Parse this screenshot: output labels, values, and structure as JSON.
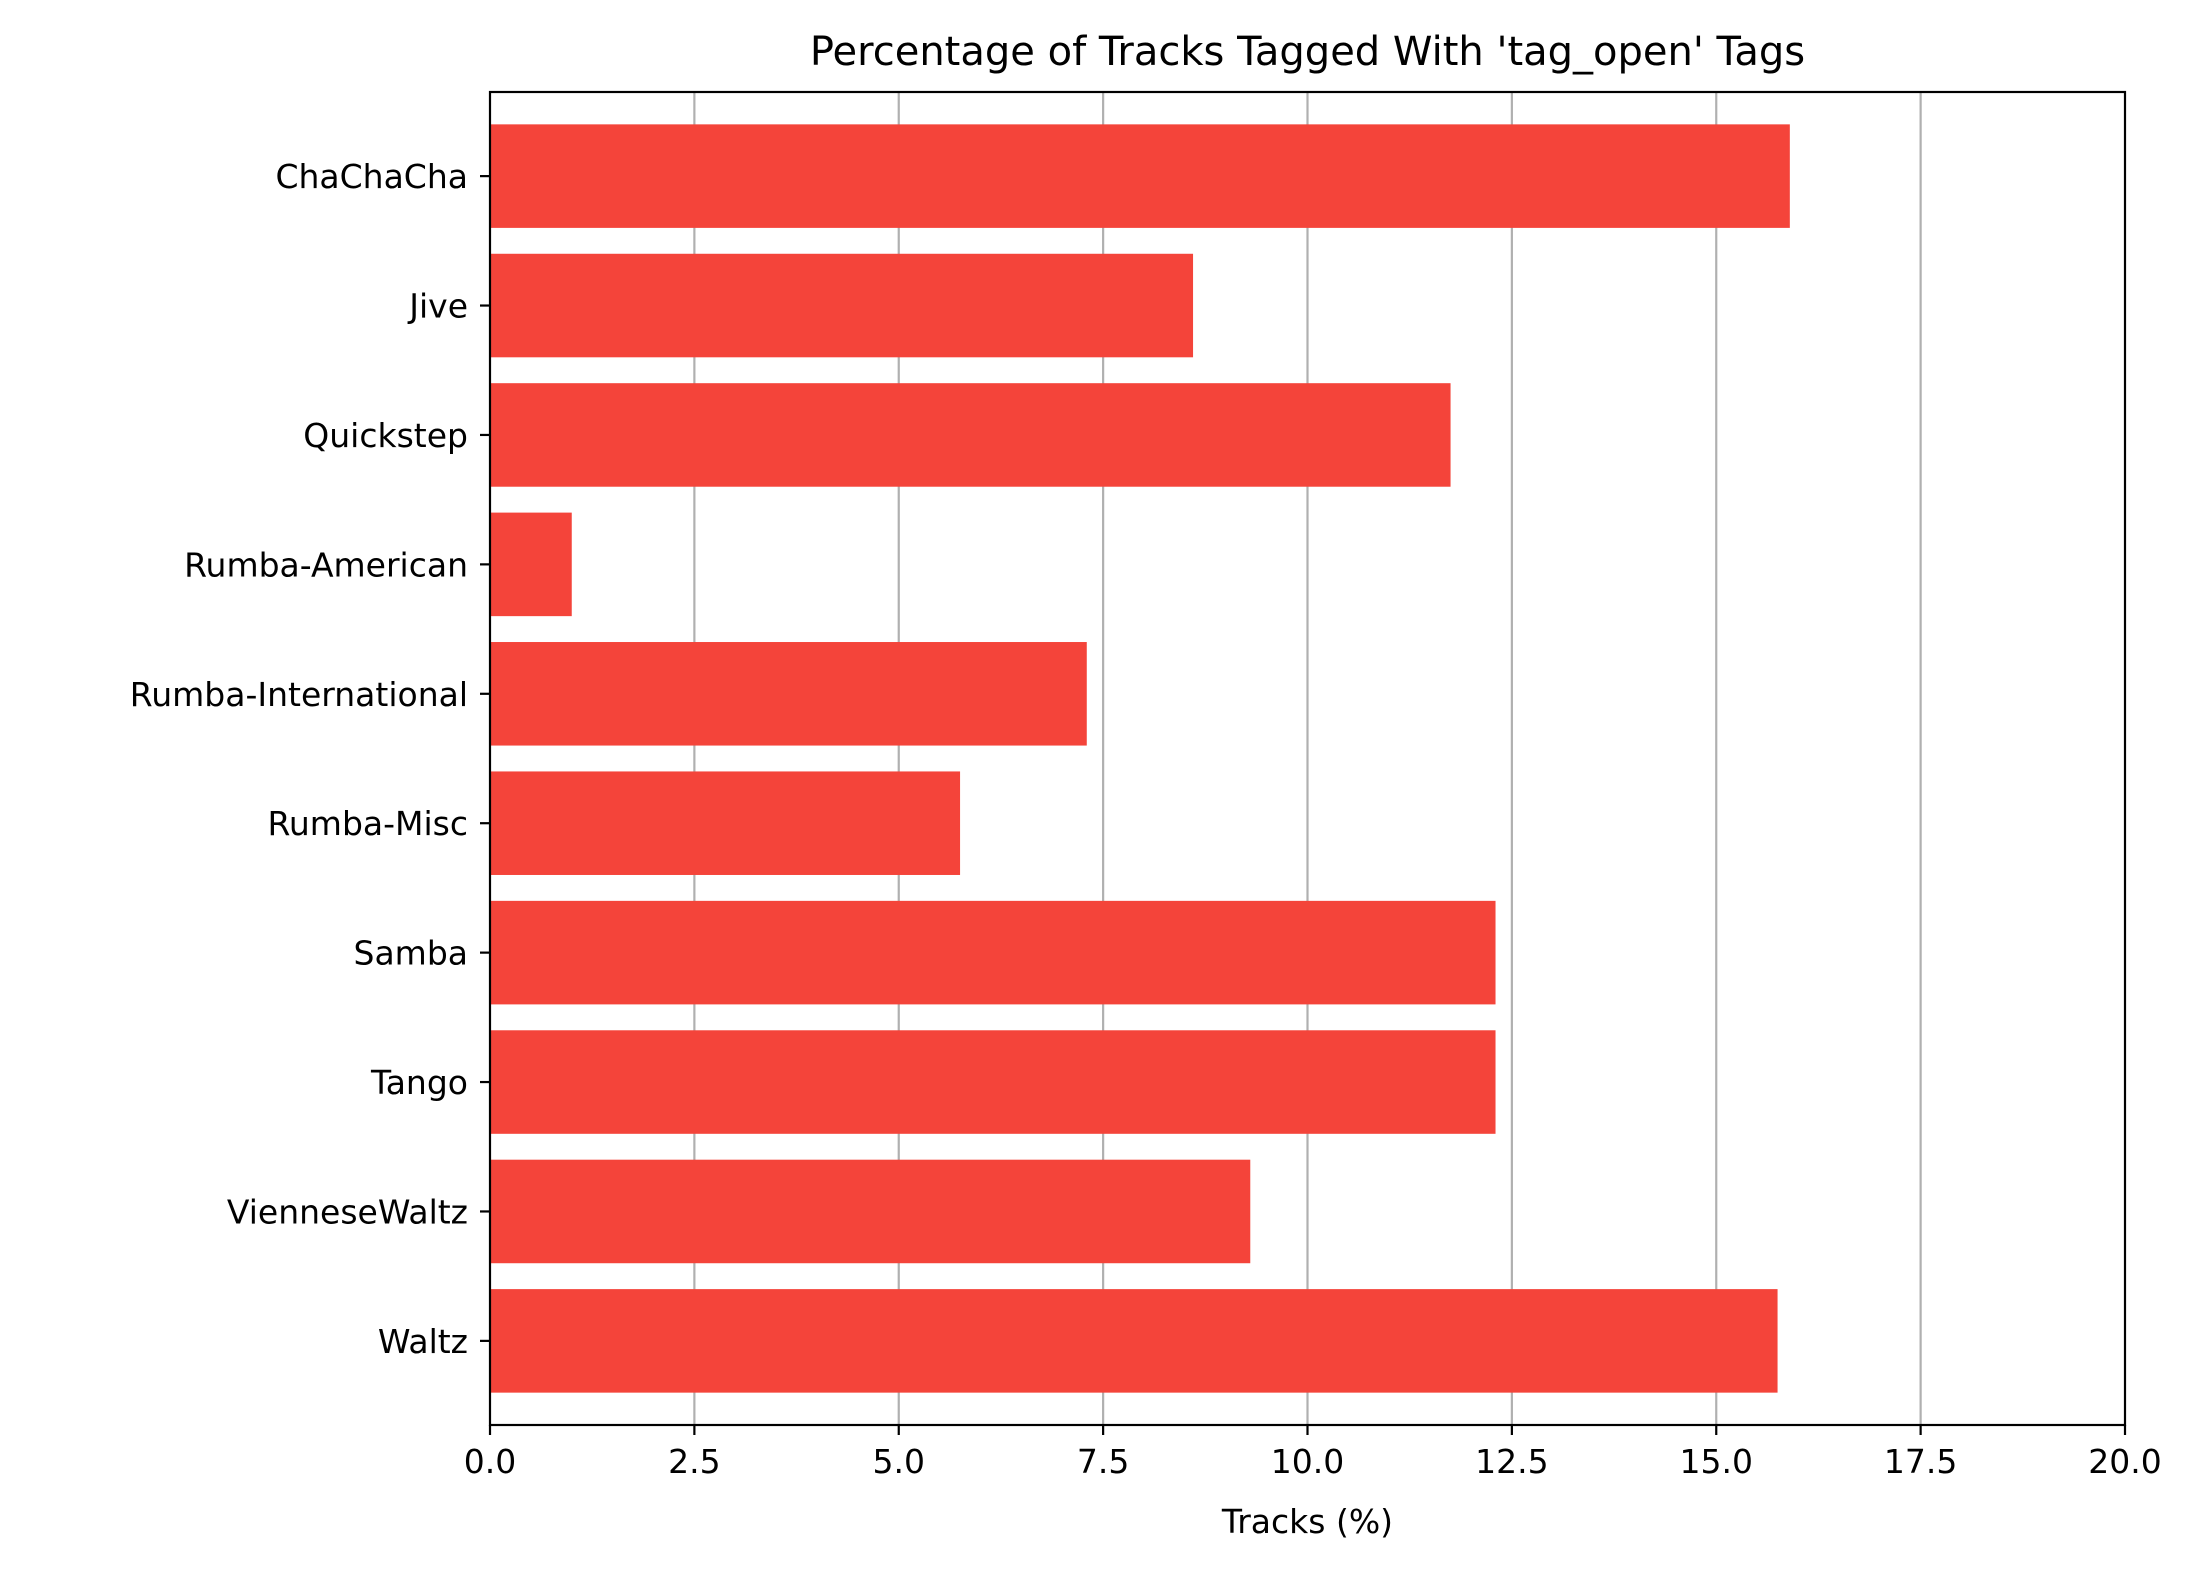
{
  "chart_data": {
    "type": "bar",
    "orientation": "horizontal",
    "title": "Percentage of Tracks Tagged With 'tag_open' Tags",
    "xlabel": "Tracks (%)",
    "ylabel": "",
    "xlim": [
      0,
      20
    ],
    "xticks": [
      "0.0",
      "2.5",
      "5.0",
      "7.5",
      "10.0",
      "12.5",
      "15.0",
      "17.5",
      "20.0"
    ],
    "grid": "vertical",
    "bar_color": "#f4443a",
    "categories": [
      "ChaChaCha",
      "Jive",
      "Quickstep",
      "Rumba-American",
      "Rumba-International",
      "Rumba-Misc",
      "Samba",
      "Tango",
      "VienneseWaltz",
      "Waltz"
    ],
    "values": [
      15.9,
      8.6,
      11.75,
      1.0,
      7.3,
      5.75,
      12.3,
      12.3,
      9.3,
      15.75
    ]
  }
}
